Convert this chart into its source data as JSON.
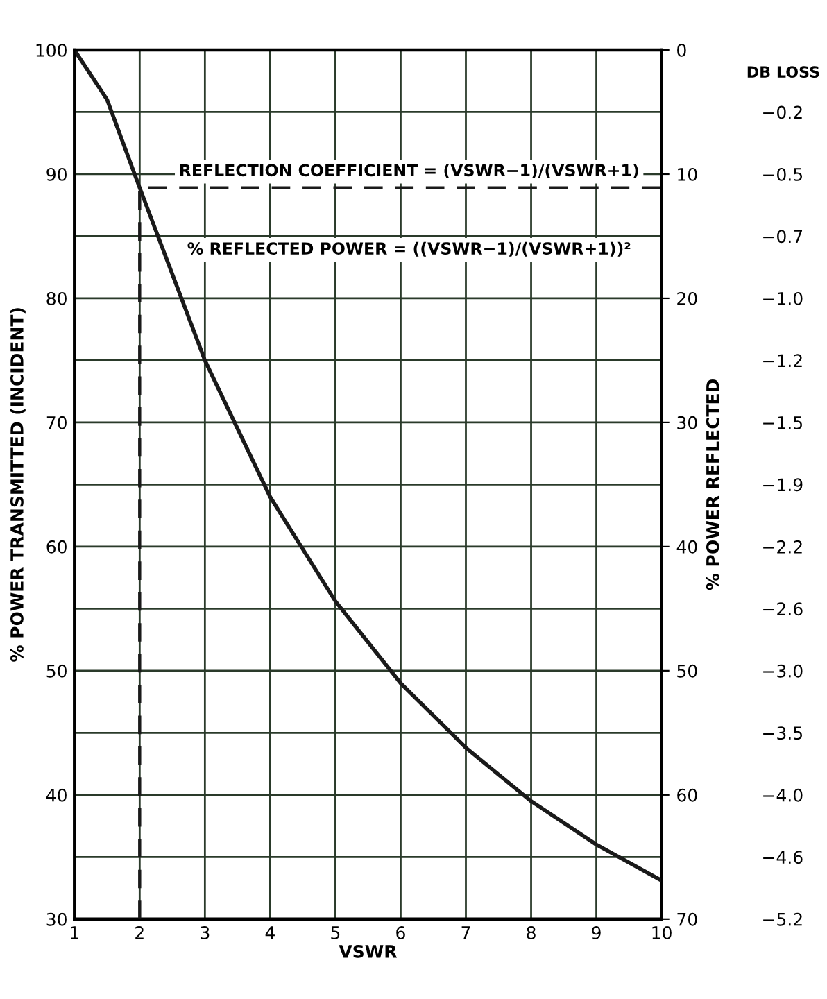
{
  "chart_data": {
    "type": "line",
    "xlabel": "VSWR",
    "ylabel": "% POWER TRANSMITTED (INCIDENT)",
    "y2label": "% POWER REFLECTED",
    "y3label": "DB LOSS",
    "xlim": [
      1,
      10
    ],
    "xticks": [
      1,
      2,
      3,
      4,
      5,
      6,
      7,
      8,
      9,
      10
    ],
    "ylim": [
      30,
      100
    ],
    "yticks": [
      30,
      {
        "value": 35,
        "label": null
      },
      40,
      {
        "value": 45,
        "label": null
      },
      50,
      {
        "value": 55,
        "label": null
      },
      60,
      {
        "value": 65,
        "label": null
      },
      70,
      {
        "value": 75,
        "label": null
      },
      80,
      {
        "value": 85,
        "label": null
      },
      90,
      {
        "value": 95,
        "label": null
      },
      100
    ],
    "y2lim": [
      70,
      0
    ],
    "y2ticks": [
      0,
      10,
      20,
      30,
      40,
      50,
      60,
      70
    ],
    "y2_categories": [
      null,
      "−0.2",
      "−0.5",
      "−0.7",
      "−1.0",
      "−1.2",
      "−1.5",
      "−1.9",
      "−2.2",
      "−2.6",
      "−3.0",
      "−3.5",
      "−4.0",
      "−4.6",
      "−5.2"
    ],
    "grid": true,
    "annotations": [
      "REFLECTION COEFFICIENT = (VSWR−1)/(VSWR+1)",
      "% REFLECTED POWER = ((VSWR−1)/(VSWR+1))²"
    ],
    "series": [
      {
        "color": "#1a1a1a",
        "line_style": "solid",
        "x": [
          1,
          1.5,
          2,
          3,
          4,
          5,
          6,
          7,
          8,
          9,
          10
        ],
        "values": [
          100,
          96,
          88.9,
          75,
          64,
          55.6,
          49,
          43.8,
          39.5,
          36,
          33.1
        ]
      },
      {
        "color": "#1a1a1a",
        "line_style": "dashed",
        "x": [
          2,
          2,
          10
        ],
        "values": [
          30,
          88.9,
          88.9
        ]
      }
    ]
  }
}
